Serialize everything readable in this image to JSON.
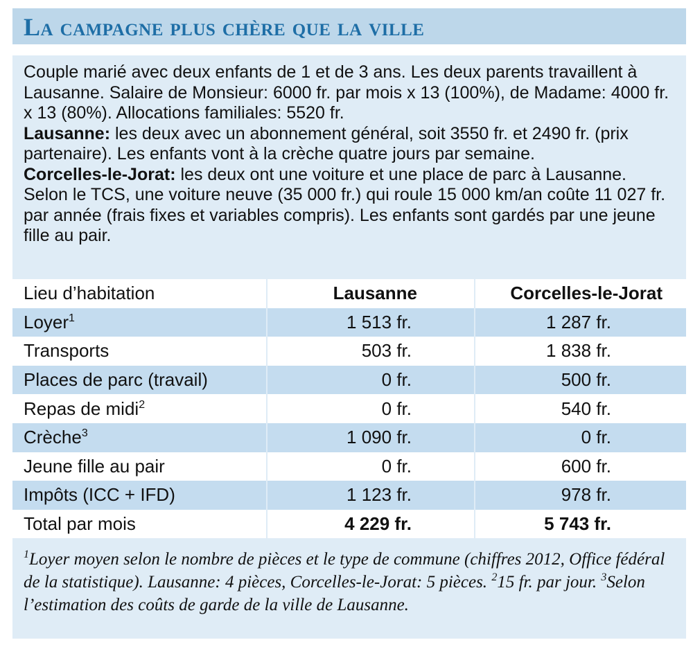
{
  "title": "La campagne plus chère que la ville",
  "intro": [
    {
      "lead": null,
      "text": "Couple marié avec deux enfants de 1 et de 3 ans. Les deux parents travaillent à Lausanne. Salaire de Monsieur: 6000 fr. par mois x 13 (100%), de Madame: 4000 fr. x 13 (80%). Allocations familiales: 5520 fr."
    },
    {
      "lead": "Lausanne:",
      "text": "les deux avec un abonnement général, soit 3550 fr. et 2490 fr. (prix partenaire). Les enfants vont à la crèche quatre jours par semaine."
    },
    {
      "lead": "Corcelles-le-Jorat:",
      "text": "les deux ont une voiture et une place de parc à Lausanne. Selon le TCS,  une voiture neuve (35 000 fr.) qui roule 15 000 km/an coûte 11 027 fr. par année (frais fixes et variables compris). Les enfants sont gardés par une jeune fille au pair."
    }
  ],
  "table": {
    "header": [
      "Lieu d’habitation",
      "Lausanne",
      "Corcelles-le-Jorat"
    ],
    "rows": [
      {
        "label": "Loyer",
        "note": "1",
        "cells": [
          "1 513 fr.",
          "1 287 fr."
        ]
      },
      {
        "label": "Transports",
        "note": null,
        "cells": [
          "503 fr.",
          "1 838 fr."
        ]
      },
      {
        "label": "Places de parc (travail)",
        "note": null,
        "cells": [
          "0 fr.",
          "500 fr."
        ]
      },
      {
        "label": "Repas de midi",
        "note": "2",
        "cells": [
          "0 fr.",
          "540 fr."
        ]
      },
      {
        "label": "Crèche",
        "note": "3",
        "cells": [
          "1 090 fr.",
          "0 fr."
        ]
      },
      {
        "label": "Jeune fille au pair",
        "note": null,
        "cells": [
          "0 fr.",
          "600 fr."
        ]
      },
      {
        "label": "Impôts (ICC + IFD)",
        "note": null,
        "cells": [
          "1 123 fr.",
          "978 fr."
        ]
      },
      {
        "label": "Total par mois",
        "note": null,
        "cells": [
          "4 229 fr.",
          "5 743 fr."
        ]
      }
    ]
  },
  "footnotes": [
    {
      "number": "1",
      "text": "Loyer moyen selon le nombre de pièces et le type de commune (chiffres 2012, Office fédéral de la statistique). Lausanne: 4 pièces, Corcelles-le-Jorat: 5 pièces."
    },
    {
      "number": "2",
      "text": "15 fr. par jour."
    },
    {
      "number": "3",
      "text": "Selon l’estimation des coûts de garde de la ville de Lausanne."
    }
  ]
}
